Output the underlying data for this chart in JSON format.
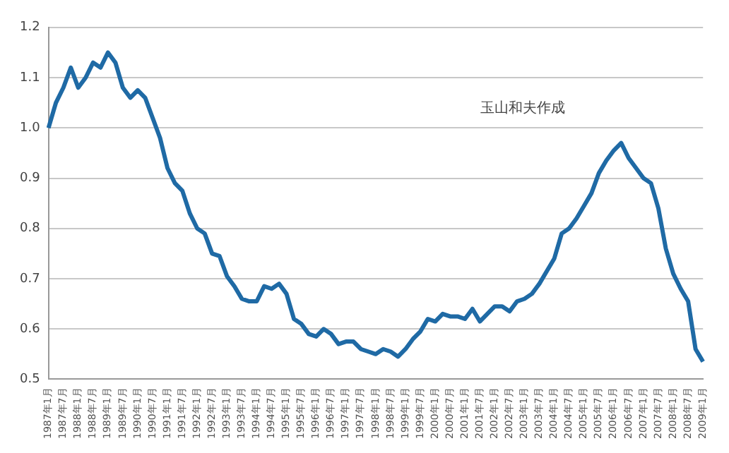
{
  "chart_data": {
    "type": "line",
    "categories": [
      "1987年1月",
      null,
      "1987年7月",
      null,
      "1988年1月",
      null,
      "1988年7月",
      null,
      "1989年1月",
      null,
      "1989年7月",
      null,
      "1990年1月",
      null,
      "1990年7月",
      null,
      "1991年1月",
      null,
      "1991年7月",
      null,
      "1992年1月",
      null,
      "1992年7月",
      null,
      "1993年1月",
      null,
      "1993年7月",
      null,
      "1994年1月",
      null,
      "1994年7月",
      null,
      "1995年1月",
      null,
      "1995年7月",
      null,
      "1996年1月",
      null,
      "1996年7月",
      null,
      "1997年1月",
      null,
      "1997年7月",
      null,
      "1998年1月",
      null,
      "1998年7月",
      null,
      "1999年1月",
      null,
      "1999年7月",
      null,
      "2000年1月",
      null,
      "2000年7月",
      null,
      "2001年1月",
      null,
      "2001年7月",
      null,
      "2002年1月",
      null,
      "2002年7月",
      null,
      "2003年1月",
      null,
      "2003年7月",
      null,
      "2004年1月",
      null,
      "2004年7月",
      null,
      "2005年1月",
      null,
      "2005年7月",
      null,
      "2006年1月",
      null,
      "2006年7月",
      null,
      "2007年1月",
      null,
      "2007年7月",
      null,
      "2008年1月",
      null,
      "2008年7月",
      null,
      "2009年1月"
    ],
    "series": [
      {
        "color": "#1f6aa5",
        "values": [
          1.0,
          1.05,
          1.08,
          1.12,
          1.08,
          1.1,
          1.13,
          1.12,
          1.15,
          1.13,
          1.08,
          1.06,
          1.075,
          1.06,
          1.02,
          0.98,
          0.92,
          0.89,
          0.875,
          0.83,
          0.8,
          0.79,
          0.75,
          0.745,
          0.705,
          0.685,
          0.66,
          0.655,
          0.655,
          0.685,
          0.68,
          0.69,
          0.67,
          0.62,
          0.61,
          0.59,
          0.585,
          0.6,
          0.59,
          0.57,
          0.575,
          0.575,
          0.56,
          0.555,
          0.55,
          0.56,
          0.555,
          0.545,
          0.56,
          0.58,
          0.595,
          0.62,
          0.615,
          0.63,
          0.625,
          0.625,
          0.62,
          0.64,
          0.615,
          0.63,
          0.645,
          0.645,
          0.635,
          0.655,
          0.66,
          0.67,
          0.69,
          0.715,
          0.74,
          0.79,
          0.8,
          0.82,
          0.845,
          0.87,
          0.91,
          0.935,
          0.955,
          0.97,
          0.94,
          0.92,
          0.9,
          0.89,
          0.84,
          0.76,
          0.71,
          0.68,
          0.655,
          0.56,
          0.535
        ]
      }
    ],
    "ylim": [
      0.5,
      1.2
    ],
    "yticks": [
      0.5,
      0.6,
      0.7,
      0.8,
      0.9,
      {
        "value": 1,
        "label": "1.0"
      },
      1.1,
      1.2
    ],
    "grid": "y",
    "marker": "none",
    "line_style": "solid",
    "legend": false,
    "annotations": [
      "玉山和夫作成"
    ]
  }
}
